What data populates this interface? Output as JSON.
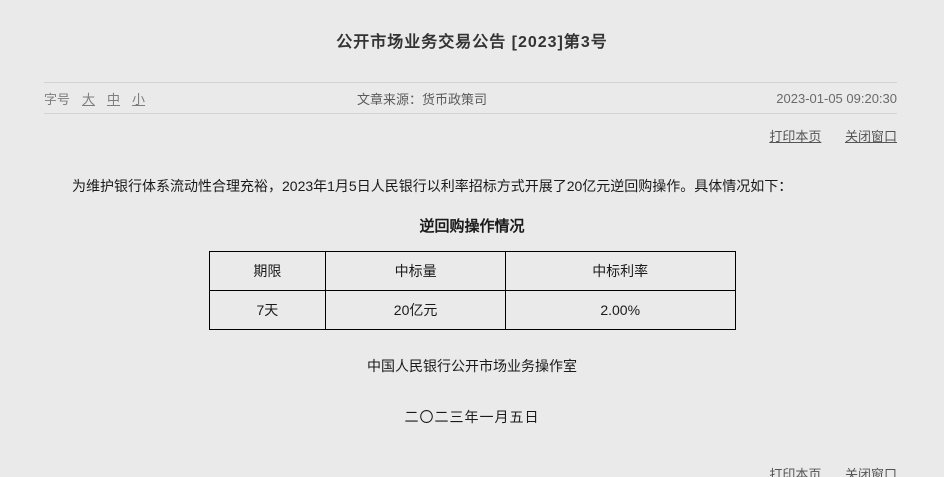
{
  "page": {
    "title": "公开市场业务交易公告 [2023]第3号"
  },
  "meta": {
    "font_size_label": "字号",
    "font_sizes": [
      "大",
      "中",
      "小"
    ],
    "source_label": "文章来源：",
    "source_value": "货币政策司",
    "timestamp": "2023-01-05 09:20:30"
  },
  "actions": {
    "print_label": "打印本页",
    "close_label": "关闭窗口"
  },
  "article": {
    "paragraph": "为维护银行体系流动性合理充裕，2023年1月5日人民银行以利率招标方式开展了20亿元逆回购操作。具体情况如下：",
    "table_title": "逆回购操作情况",
    "table": {
      "headers": [
        "期限",
        "中标量",
        "中标利率"
      ],
      "rows": [
        [
          "7天",
          "20亿元",
          "2.00%"
        ]
      ]
    },
    "signature": "中国人民银行公开市场业务操作室",
    "date": "二〇二三年一月五日"
  },
  "colors": {
    "background": "#eaeaea",
    "divider": "#d4d4d4",
    "table_border": "#000000",
    "meta_text": "#7d7d7d",
    "link_text": "#555555",
    "body_text": "#1a1a1a"
  }
}
